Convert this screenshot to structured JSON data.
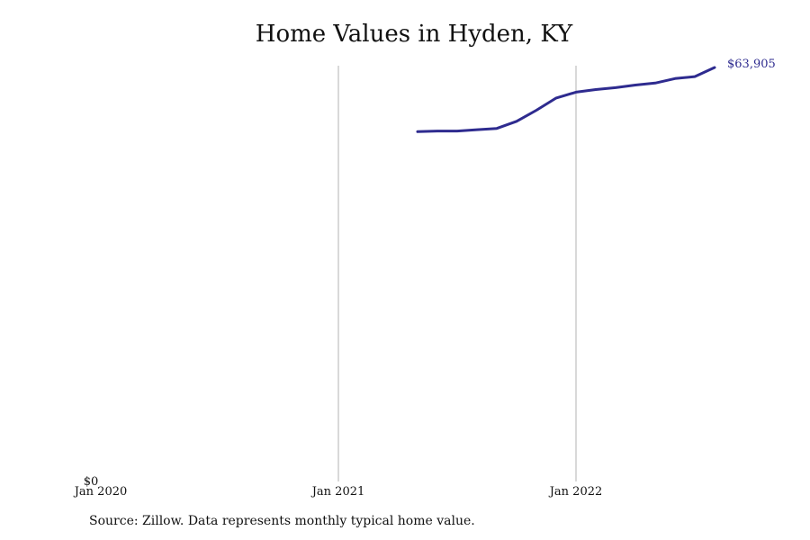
{
  "chart_data": {
    "type": "line",
    "title": "Home Values in Hyden, KY",
    "xlabel": "",
    "ylabel": "",
    "x_ticks": [
      "Jan 2020",
      "Jan 2021",
      "Jan 2022"
    ],
    "y_ticks": [
      "$0"
    ],
    "ylim": [
      0,
      64000
    ],
    "xlim": [
      "2020-01",
      "2022-10"
    ],
    "grid": "vertical at year starts",
    "end_label": "$63,905",
    "series": [
      {
        "color": "#2e2b8f",
        "x": [
          "2021-05",
          "2021-06",
          "2021-07",
          "2021-08",
          "2021-09",
          "2021-10",
          "2021-11",
          "2021-12",
          "2022-01",
          "2022-02",
          "2022-03",
          "2022-04",
          "2022-05",
          "2022-06",
          "2022-07",
          "2022-08"
        ],
        "y": [
          54000,
          54100,
          54100,
          54300,
          54500,
          55600,
          57300,
          59200,
          60100,
          60500,
          60800,
          61200,
          61500,
          62200,
          62500,
          63905
        ]
      }
    ]
  },
  "source_note": "Source: Zillow. Data represents monthly typical home value."
}
